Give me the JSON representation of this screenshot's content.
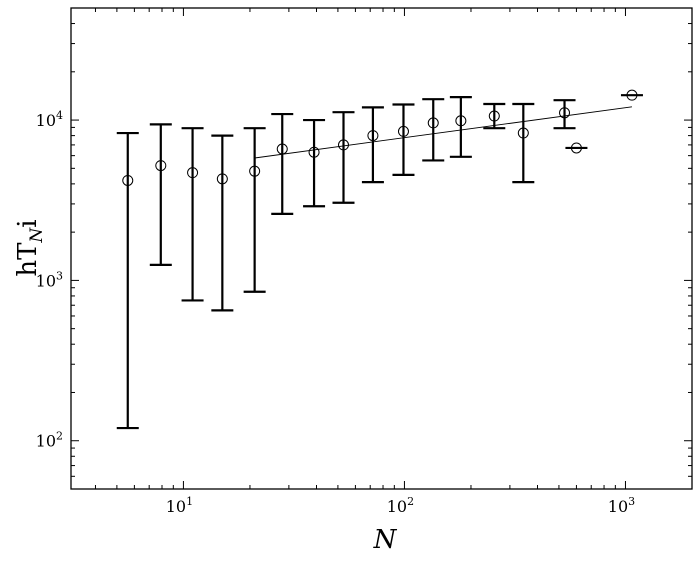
{
  "chart_data": {
    "type": "scatter",
    "xscale": "log",
    "yscale": "log",
    "xlim": [
      3.1,
      2000
    ],
    "ylim": [
      50,
      50000
    ],
    "grid": false,
    "xlabel": "N",
    "ylabel": "hT_{N}i",
    "ylabel_parts": {
      "main": "hT",
      "sub": "N",
      "tail": "i"
    },
    "x_ticks": [
      {
        "value": 10,
        "base": "10",
        "exp": "1"
      },
      {
        "value": 100,
        "base": "10",
        "exp": "2"
      },
      {
        "value": 1000,
        "base": "10",
        "exp": "3"
      }
    ],
    "y_ticks": [
      {
        "value": 100,
        "base": "10",
        "exp": "2"
      },
      {
        "value": 1000,
        "base": "10",
        "exp": "3"
      },
      {
        "value": 10000,
        "base": "10",
        "exp": "4"
      }
    ],
    "series": [
      {
        "marker": "open-circle",
        "points": [
          {
            "x": 5.6,
            "y": 4200,
            "ylow": 120,
            "yhigh": 8300
          },
          {
            "x": 7.9,
            "y": 5200,
            "ylow": 1250,
            "yhigh": 9400
          },
          {
            "x": 11,
            "y": 4700,
            "ylow": 750,
            "yhigh": 8900
          },
          {
            "x": 15,
            "y": 4300,
            "ylow": 650,
            "yhigh": 8000
          },
          {
            "x": 21,
            "y": 4800,
            "ylow": 850,
            "yhigh": 8900
          },
          {
            "x": 28,
            "y": 6600,
            "ylow": 2600,
            "yhigh": 10900
          },
          {
            "x": 39,
            "y": 6300,
            "ylow": 2900,
            "yhigh": 10000
          },
          {
            "x": 53,
            "y": 7000,
            "ylow": 3050,
            "yhigh": 11200
          },
          {
            "x": 72,
            "y": 8000,
            "ylow": 4100,
            "yhigh": 12000
          },
          {
            "x": 99,
            "y": 8500,
            "ylow": 4550,
            "yhigh": 12500
          },
          {
            "x": 135,
            "y": 9600,
            "ylow": 5600,
            "yhigh": 13500
          },
          {
            "x": 180,
            "y": 9900,
            "ylow": 5900,
            "yhigh": 13900
          },
          {
            "x": 255,
            "y": 10600,
            "ylow": 8900,
            "yhigh": 12600
          },
          {
            "x": 345,
            "y": 8300,
            "ylow": 4100,
            "yhigh": 12600
          },
          {
            "x": 530,
            "y": 11100,
            "ylow": 8900,
            "yhigh": 13300
          },
          {
            "x": 600,
            "y": 6700,
            "ylow": 6700,
            "yhigh": 6700
          },
          {
            "x": 1070,
            "y": 14300,
            "ylow": 14300,
            "yhigh": 14300
          }
        ]
      }
    ],
    "fit_line": {
      "x": [
        21,
        1070
      ],
      "y": [
        5800,
        12100
      ]
    }
  }
}
